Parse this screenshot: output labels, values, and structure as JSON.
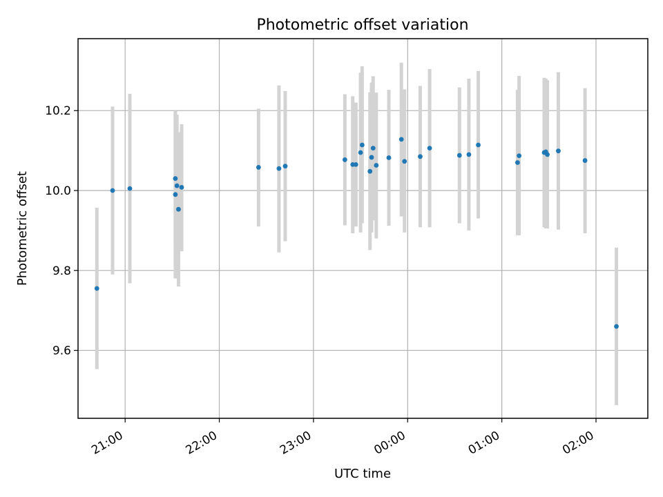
{
  "chart_data": {
    "type": "scatter",
    "title": "Photometric offset variation",
    "xlabel": "UTC time",
    "ylabel": "Photometric offset",
    "x_ticks": [
      "21:00",
      "22:00",
      "23:00",
      "00:00",
      "01:00",
      "02:00"
    ],
    "y_ticks": [
      9.6,
      9.8,
      10.0,
      10.2
    ],
    "xlim": [
      -42,
      5
    ],
    "ylim": [
      9.43,
      10.38
    ],
    "grid": true,
    "legend": "none",
    "colors": {
      "points": "#1f77b4",
      "errorbars": "#d3d3d3"
    },
    "series": [
      {
        "points": [
          {
            "t": "20:42",
            "y": 9.755,
            "lo": 9.553,
            "hi": 9.957
          },
          {
            "t": "20:52",
            "y": 10.0,
            "lo": 9.79,
            "hi": 10.21
          },
          {
            "t": "21:03",
            "y": 10.005,
            "lo": 9.768,
            "hi": 10.242
          },
          {
            "t": "21:32",
            "y": 10.03,
            "lo": 9.86,
            "hi": 10.2
          },
          {
            "t": "21:32",
            "y": 9.99,
            "lo": 9.78,
            "hi": 10.198
          },
          {
            "t": "21:33",
            "y": 10.012,
            "lo": 9.835,
            "hi": 10.19
          },
          {
            "t": "21:34",
            "y": 9.953,
            "lo": 9.76,
            "hi": 10.146
          },
          {
            "t": "21:36",
            "y": 10.008,
            "lo": 9.848,
            "hi": 10.166
          },
          {
            "t": "22:25",
            "y": 10.058,
            "lo": 9.91,
            "hi": 10.205
          },
          {
            "t": "22:38",
            "y": 10.055,
            "lo": 9.845,
            "hi": 10.263
          },
          {
            "t": "22:42",
            "y": 10.061,
            "lo": 9.873,
            "hi": 10.249
          },
          {
            "t": "23:20",
            "y": 10.077,
            "lo": 9.913,
            "hi": 10.241
          },
          {
            "t": "23:25",
            "y": 10.065,
            "lo": 9.893,
            "hi": 10.236
          },
          {
            "t": "23:27",
            "y": 10.065,
            "lo": 9.91,
            "hi": 10.22
          },
          {
            "t": "23:30",
            "y": 10.095,
            "lo": 9.895,
            "hi": 10.295
          },
          {
            "t": "23:31",
            "y": 10.114,
            "lo": 9.918,
            "hi": 10.311
          },
          {
            "t": "23:36",
            "y": 10.048,
            "lo": 9.851,
            "hi": 10.246
          },
          {
            "t": "23:37",
            "y": 10.083,
            "lo": 9.895,
            "hi": 10.27
          },
          {
            "t": "23:38",
            "y": 10.106,
            "lo": 9.925,
            "hi": 10.286
          },
          {
            "t": "23:40",
            "y": 10.063,
            "lo": 9.88,
            "hi": 10.245
          },
          {
            "t": "23:48",
            "y": 10.082,
            "lo": 9.912,
            "hi": 10.252
          },
          {
            "t": "23:56",
            "y": 10.128,
            "lo": 9.935,
            "hi": 10.32
          },
          {
            "t": "23:58",
            "y": 10.073,
            "lo": 9.895,
            "hi": 10.253
          },
          {
            "t": "00:08",
            "y": 10.085,
            "lo": 9.908,
            "hi": 10.262
          },
          {
            "t": "00:14",
            "y": 10.106,
            "lo": 9.908,
            "hi": 10.304
          },
          {
            "t": "00:33",
            "y": 10.088,
            "lo": 9.918,
            "hi": 10.258
          },
          {
            "t": "00:39",
            "y": 10.09,
            "lo": 9.9,
            "hi": 10.28
          },
          {
            "t": "00:45",
            "y": 10.114,
            "lo": 9.93,
            "hi": 10.299
          },
          {
            "t": "01:10",
            "y": 10.07,
            "lo": 9.888,
            "hi": 10.252
          },
          {
            "t": "01:11",
            "y": 10.087,
            "lo": 9.888,
            "hi": 10.287
          },
          {
            "t": "01:27",
            "y": 10.095,
            "lo": 9.908,
            "hi": 10.282
          },
          {
            "t": "01:28",
            "y": 10.097,
            "lo": 9.905,
            "hi": 10.28
          },
          {
            "t": "01:29",
            "y": 10.09,
            "lo": 9.905,
            "hi": 10.276
          },
          {
            "t": "01:36",
            "y": 10.099,
            "lo": 9.902,
            "hi": 10.296
          },
          {
            "t": "01:53",
            "y": 10.075,
            "lo": 9.893,
            "hi": 10.256
          },
          {
            "t": "02:13",
            "y": 9.66,
            "lo": 9.463,
            "hi": 9.857
          }
        ]
      }
    ]
  }
}
